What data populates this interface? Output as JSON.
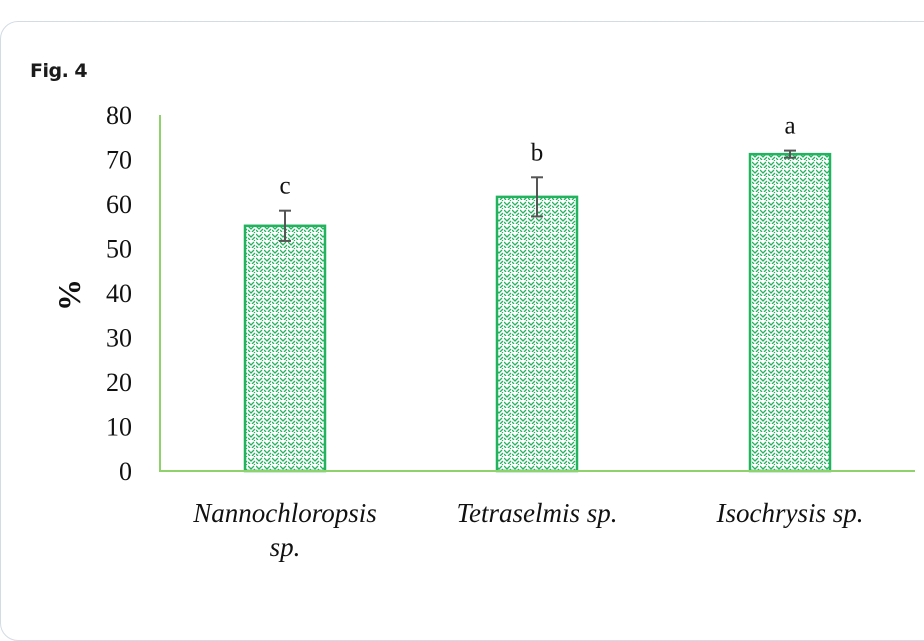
{
  "figure_label": "Fig. 4",
  "chart_data": {
    "type": "bar",
    "title": "",
    "xlabel": "",
    "ylabel": "%",
    "ylim": [
      0,
      80
    ],
    "yticks": [
      "0",
      "10",
      "20",
      "30",
      "40",
      "50",
      "60",
      "70",
      "80"
    ],
    "categories": [
      "Nannochloropsis sp.",
      "Tetraselmis sp.",
      "Isochrysis sp."
    ],
    "category_lines": [
      [
        "Nannochloropsis",
        "sp."
      ],
      [
        "Tetraselmis sp."
      ],
      [
        "Isochrysis sp."
      ]
    ],
    "values": [
      55.1,
      61.6,
      71.2
    ],
    "errors": [
      3.4,
      4.4,
      0.8
    ],
    "significance_labels": [
      "c",
      "b",
      "a"
    ],
    "grid": false,
    "legend": "none",
    "colors": {
      "bar": "#22b35e",
      "axis": "#8fd16a",
      "error_bar": "#555555"
    }
  }
}
